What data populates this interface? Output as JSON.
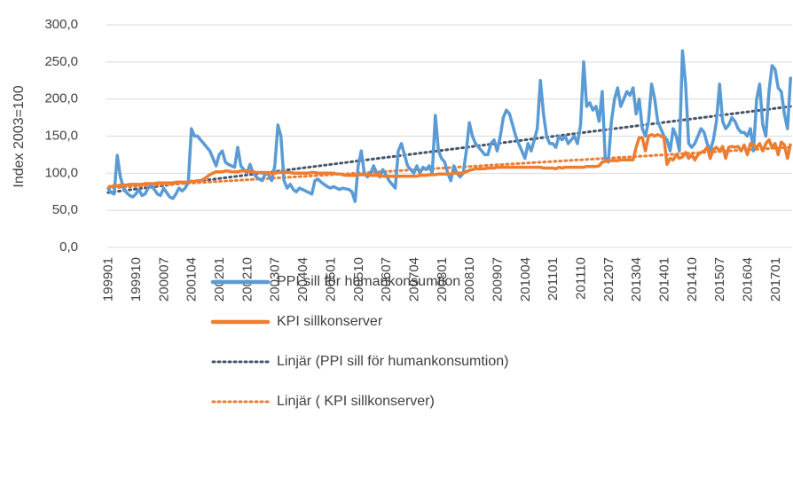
{
  "chart_data": {
    "type": "line",
    "y_label": "Index 2003=100",
    "ylim": [
      0,
      300
    ],
    "yticks": [
      {
        "value": 0,
        "label": "0,0"
      },
      {
        "value": 50,
        "label": "50,0"
      },
      {
        "value": 100,
        "label": "100,0"
      },
      {
        "value": 150,
        "label": "150,0"
      },
      {
        "value": 200,
        "label": "200,0"
      },
      {
        "value": 250,
        "label": "250,0"
      },
      {
        "value": 300,
        "label": "300,0"
      }
    ],
    "grid": true,
    "legend": "bottom",
    "categories": [
      "199901",
      null,
      null,
      null,
      null,
      null,
      null,
      null,
      null,
      "199910",
      null,
      null,
      null,
      null,
      null,
      null,
      null,
      null,
      "200007",
      null,
      null,
      null,
      null,
      null,
      null,
      null,
      null,
      "200104",
      null,
      null,
      null,
      null,
      null,
      null,
      null,
      null,
      "200201",
      null,
      null,
      null,
      null,
      null,
      null,
      null,
      null,
      "200210",
      null,
      null,
      null,
      null,
      null,
      null,
      null,
      null,
      "200307",
      null,
      null,
      null,
      null,
      null,
      null,
      null,
      null,
      "200404",
      null,
      null,
      null,
      null,
      null,
      null,
      null,
      null,
      "200501",
      null,
      null,
      null,
      null,
      null,
      null,
      null,
      null,
      "200510",
      null,
      null,
      null,
      null,
      null,
      null,
      null,
      null,
      "200607",
      null,
      null,
      null,
      null,
      null,
      null,
      null,
      null,
      "200704",
      null,
      null,
      null,
      null,
      null,
      null,
      null,
      null,
      "200801",
      null,
      null,
      null,
      null,
      null,
      null,
      null,
      null,
      "200810",
      null,
      null,
      null,
      null,
      null,
      null,
      null,
      null,
      "200907",
      null,
      null,
      null,
      null,
      null,
      null,
      null,
      null,
      "201004",
      null,
      null,
      null,
      null,
      null,
      null,
      null,
      null,
      "201101",
      null,
      null,
      null,
      null,
      null,
      null,
      null,
      null,
      "201110",
      null,
      null,
      null,
      null,
      null,
      null,
      null,
      null,
      "201207",
      null,
      null,
      null,
      null,
      null,
      null,
      null,
      null,
      "201304",
      null,
      null,
      null,
      null,
      null,
      null,
      null,
      null,
      "201401",
      null,
      null,
      null,
      null,
      null,
      null,
      null,
      null,
      "201410",
      null,
      null,
      null,
      null,
      null,
      null,
      null,
      null,
      "201507",
      null,
      null,
      null,
      null,
      null,
      null,
      null,
      null,
      "201604",
      null,
      null,
      null,
      null,
      null,
      null,
      null,
      null,
      "201701",
      null,
      null,
      null,
      null,
      null
    ],
    "series": [
      {
        "name": "PPI sill för humankonsumtion",
        "color": "#5b9bd5",
        "values": [
          80,
          74,
          72,
          124,
          95,
          80,
          74,
          70,
          68,
          72,
          78,
          70,
          72,
          80,
          84,
          78,
          72,
          70,
          80,
          74,
          68,
          66,
          72,
          80,
          76,
          80,
          88,
          160,
          150,
          150,
          145,
          140,
          135,
          130,
          120,
          110,
          125,
          130,
          115,
          112,
          110,
          108,
          135,
          110,
          105,
          100,
          112,
          100,
          95,
          92,
          90,
          100,
          98,
          90,
          110,
          165,
          150,
          90,
          80,
          85,
          78,
          75,
          80,
          78,
          76,
          74,
          72,
          90,
          92,
          88,
          85,
          82,
          80,
          82,
          80,
          78,
          80,
          79,
          78,
          75,
          62,
          110,
          130,
          100,
          95,
          100,
          110,
          100,
          95,
          105,
          98,
          90,
          85,
          80,
          130,
          140,
          125,
          110,
          105,
          100,
          110,
          100,
          108,
          105,
          110,
          100,
          178,
          130,
          120,
          115,
          100,
          90,
          110,
          100,
          95,
          100,
          130,
          168,
          150,
          140,
          135,
          130,
          125,
          125,
          140,
          145,
          130,
          150,
          175,
          185,
          180,
          165,
          150,
          140,
          130,
          120,
          140,
          130,
          145,
          160,
          225,
          180,
          150,
          140,
          140,
          135,
          150,
          145,
          150,
          140,
          145,
          150,
          140,
          165,
          250,
          190,
          195,
          185,
          190,
          170,
          210,
          120,
          115,
          170,
          200,
          215,
          190,
          200,
          210,
          205,
          215,
          180,
          200,
          160,
          150,
          170,
          220,
          200,
          170,
          160,
          150,
          145,
          130,
          160,
          150,
          130,
          265,
          220,
          140,
          135,
          140,
          150,
          160,
          155,
          140,
          130,
          145,
          170,
          220,
          170,
          160,
          165,
          175,
          170,
          160,
          155,
          155,
          150,
          160,
          130,
          200,
          220,
          165,
          150,
          210,
          245,
          240,
          215,
          210,
          180,
          160,
          230
        ]
      },
      {
        "name": " KPI sillkonserver",
        "color": "#ed7d31",
        "values": [
          82,
          82,
          83,
          83,
          84,
          84,
          84,
          85,
          85,
          85,
          85,
          85,
          86,
          86,
          86,
          86,
          87,
          87,
          87,
          87,
          87,
          87,
          88,
          88,
          88,
          88,
          88,
          89,
          89,
          90,
          90,
          92,
          95,
          98,
          100,
          102,
          102,
          102,
          103,
          103,
          102,
          102,
          102,
          103,
          103,
          103,
          102,
          102,
          101,
          101,
          101,
          101,
          100,
          100,
          100,
          101,
          101,
          101,
          101,
          101,
          100,
          100,
          100,
          100,
          100,
          100,
          101,
          101,
          100,
          100,
          100,
          100,
          100,
          100,
          99,
          99,
          98,
          97,
          97,
          97,
          97,
          98,
          98,
          98,
          98,
          97,
          97,
          97,
          97,
          96,
          96,
          96,
          96,
          96,
          96,
          96,
          96,
          96,
          96,
          96,
          96,
          97,
          97,
          97,
          98,
          98,
          98,
          99,
          99,
          99,
          99,
          99,
          100,
          100,
          100,
          100,
          102,
          104,
          105,
          106,
          106,
          106,
          106,
          107,
          107,
          107,
          108,
          108,
          108,
          108,
          108,
          108,
          108,
          108,
          108,
          108,
          108,
          108,
          108,
          108,
          108,
          107,
          107,
          107,
          107,
          106,
          108,
          107,
          108,
          108,
          108,
          108,
          108,
          108,
          108,
          109,
          109,
          109,
          109,
          110,
          115,
          116,
          117,
          117,
          117,
          117,
          118,
          118,
          118,
          118,
          118,
          135,
          148,
          148,
          130,
          150,
          152,
          150,
          152,
          150,
          148,
          112,
          120,
          118,
          125,
          120,
          122,
          128,
          120,
          125,
          118,
          125,
          128,
          130,
          135,
          120,
          132,
          135,
          130,
          136,
          120,
          135,
          136,
          135,
          136,
          130,
          138,
          125,
          140,
          138,
          135,
          140,
          130,
          140,
          145,
          135,
          140,
          125,
          142,
          138,
          120,
          140
        ]
      }
    ],
    "trendlines": [
      {
        "name": "Linjär (PPI sill för humankonsumtion)",
        "color": "#44546a",
        "from": 74,
        "to": 190
      },
      {
        "name": "Linjär ( KPI sillkonserver)",
        "color": "#ed7d31",
        "from": 80,
        "to": 135
      }
    ]
  }
}
